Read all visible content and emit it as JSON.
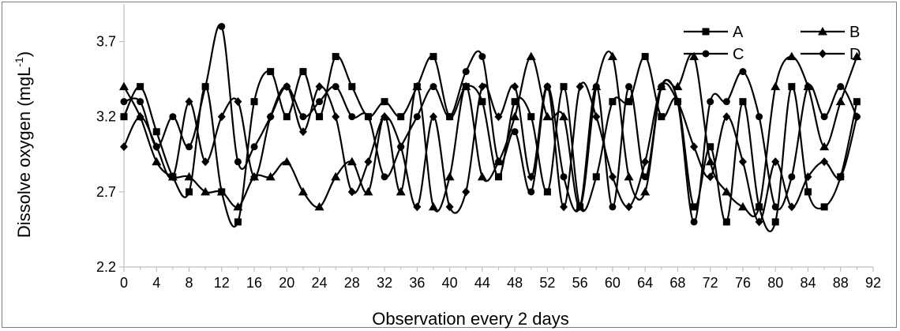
{
  "chart_data": {
    "type": "line",
    "xlabel": "Observation every 2 days",
    "ylabel_main": "Dissolve oxygen (mgL",
    "ylabel_sup": "-1",
    "ylabel_close": ")",
    "xlim": [
      0,
      92
    ],
    "ylim": [
      2.2,
      3.95
    ],
    "xticks": [
      0,
      4,
      8,
      12,
      16,
      20,
      24,
      28,
      32,
      36,
      40,
      44,
      48,
      52,
      56,
      60,
      64,
      68,
      72,
      76,
      80,
      84,
      88,
      92
    ],
    "yticks": [
      2.2,
      2.7,
      3.2,
      3.7
    ],
    "ytick_labels": [
      "2.2",
      "2.7",
      "3.2",
      "3.7"
    ],
    "grid": false,
    "legend_position": "top-right",
    "x": [
      0,
      2,
      4,
      6,
      8,
      10,
      12,
      14,
      16,
      18,
      20,
      22,
      24,
      26,
      28,
      30,
      32,
      34,
      36,
      38,
      40,
      42,
      44,
      46,
      48,
      50,
      52,
      54,
      56,
      58,
      60,
      62,
      64,
      66,
      68,
      70,
      72,
      74,
      76,
      78,
      80,
      82,
      84,
      86,
      88,
      90
    ],
    "series": [
      {
        "name": "A",
        "marker": "square",
        "values": [
          3.2,
          3.4,
          3.1,
          2.8,
          2.7,
          3.4,
          2.7,
          2.5,
          3.3,
          3.5,
          3.2,
          3.5,
          3.2,
          3.6,
          3.4,
          3.2,
          3.3,
          3.2,
          3.4,
          3.6,
          3.2,
          3.4,
          3.3,
          2.8,
          3.3,
          3.2,
          2.7,
          3.4,
          2.6,
          2.8,
          3.3,
          3.3,
          3.6,
          3.2,
          3.3,
          2.6,
          3.0,
          2.5,
          3.3,
          2.6,
          2.5,
          3.4,
          2.7,
          2.6,
          2.8,
          3.3
        ]
      },
      {
        "name": "B",
        "marker": "triangle",
        "values": [
          3.4,
          3.2,
          2.9,
          2.8,
          2.8,
          2.7,
          2.7,
          2.6,
          2.8,
          2.8,
          2.9,
          2.7,
          2.6,
          2.8,
          2.9,
          2.7,
          3.2,
          2.7,
          3.4,
          2.6,
          2.8,
          3.4,
          2.8,
          2.9,
          3.2,
          3.6,
          3.2,
          3.2,
          2.6,
          3.4,
          3.6,
          2.8,
          2.7,
          3.4,
          3.4,
          3.6,
          2.9,
          2.7,
          2.6,
          2.6,
          3.4,
          3.6,
          3.4,
          3.0,
          3.3,
          3.6
        ]
      },
      {
        "name": "C",
        "marker": "circle",
        "values": [
          3.3,
          3.3,
          3.0,
          3.2,
          3.0,
          3.4,
          3.8,
          2.9,
          3.0,
          3.2,
          3.4,
          3.2,
          3.3,
          3.4,
          3.2,
          3.2,
          2.8,
          3.0,
          3.2,
          3.4,
          3.2,
          3.5,
          3.6,
          2.9,
          3.1,
          2.7,
          3.4,
          2.8,
          2.6,
          3.4,
          2.6,
          3.4,
          2.8,
          3.4,
          3.3,
          2.5,
          3.3,
          3.3,
          3.5,
          3.2,
          2.6,
          2.8,
          3.4,
          3.2,
          3.4,
          3.2
        ]
      },
      {
        "name": "D",
        "marker": "diamond",
        "values": [
          3.0,
          3.2,
          3.0,
          2.8,
          3.3,
          2.9,
          3.2,
          3.3,
          2.8,
          3.2,
          3.4,
          3.1,
          3.4,
          3.2,
          2.7,
          2.9,
          3.2,
          3.0,
          2.6,
          3.2,
          2.6,
          2.7,
          3.4,
          3.2,
          3.4,
          2.8,
          3.4,
          2.6,
          3.4,
          3.2,
          2.8,
          2.6,
          2.9,
          3.4,
          3.3,
          3.0,
          2.8,
          3.2,
          2.9,
          2.5,
          2.9,
          2.6,
          2.8,
          2.9,
          2.8,
          3.2
        ]
      }
    ]
  },
  "colors": {
    "line": "#000000",
    "frame": "#7f7f7f",
    "axis": "#bfbfbf"
  }
}
